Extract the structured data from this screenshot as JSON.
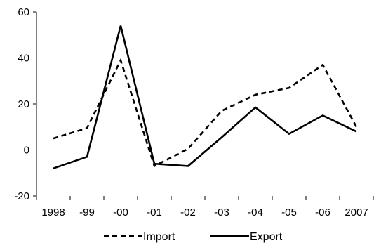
{
  "chart_data": {
    "type": "line",
    "title": "",
    "xlabel": "",
    "ylabel": "",
    "categories": [
      "1998",
      "-99",
      "-00",
      "-01",
      "-02",
      "-03",
      "-04",
      "-05",
      "-06",
      "2007"
    ],
    "ylim": [
      -20,
      60
    ],
    "yticks": [
      -20,
      0,
      20,
      40,
      60
    ],
    "grid": false,
    "legend_position": "bottom",
    "series": [
      {
        "name": "Import",
        "style": "dashed",
        "color": "#000000",
        "values": [
          5,
          9.5,
          39,
          -7,
          0.5,
          17,
          24,
          27,
          37,
          10
        ]
      },
      {
        "name": "Export",
        "style": "solid",
        "color": "#000000",
        "values": [
          -8,
          -3,
          54,
          -6,
          -7,
          5.5,
          18.5,
          7,
          15,
          8
        ]
      }
    ]
  }
}
